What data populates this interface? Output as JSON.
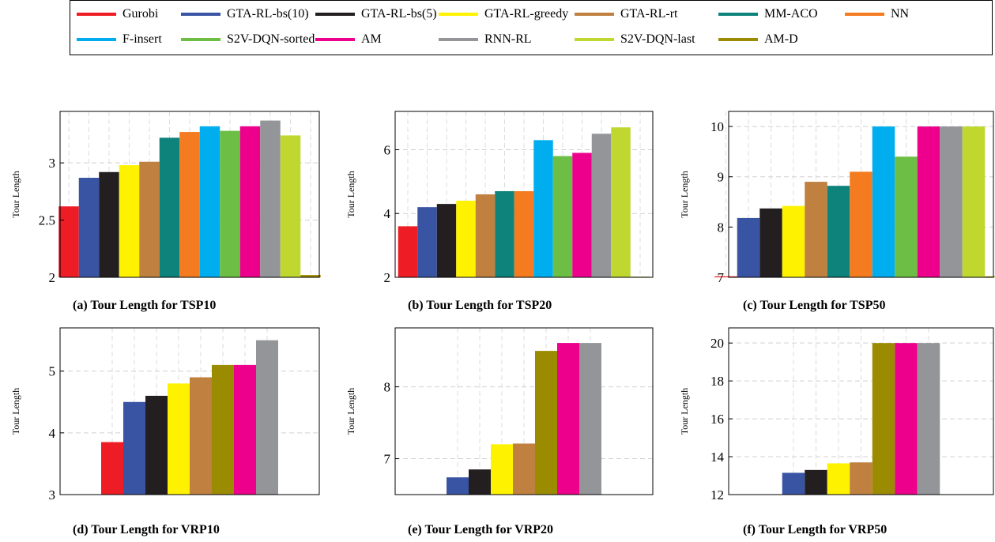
{
  "legend": [
    {
      "name": "Gurobi",
      "color": "#ee1c24"
    },
    {
      "name": "GTA-RL-bs(10)",
      "color": "#3a54a4"
    },
    {
      "name": "GTA-RL-bs(5)",
      "color": "#231f20"
    },
    {
      "name": "GTA-RL-greedy",
      "color": "#fff200"
    },
    {
      "name": "GTA-RL-rt",
      "color": "#c08040"
    },
    {
      "name": "MM-ACO",
      "color": "#0e837b"
    },
    {
      "name": "NN",
      "color": "#f47b20"
    },
    {
      "name": "F-insert",
      "color": "#00aeef"
    },
    {
      "name": "S2V-DQN-sorted",
      "color": "#6cbe45"
    },
    {
      "name": "AM",
      "color": "#ec008c"
    },
    {
      "name": "RNN-RL",
      "color": "#939598"
    },
    {
      "name": "S2V-DQN-last",
      "color": "#c0d730"
    },
    {
      "name": "AM-D",
      "color": "#9b8b00"
    }
  ],
  "chart_data": [
    {
      "type": "bar",
      "ylabel": "Tour Length",
      "caption": "(a) Tour Length for TSP10",
      "ylim": [
        2,
        3.45
      ],
      "yticks": [
        2,
        2.5,
        3
      ],
      "yticklabels": [
        "2",
        "2.5",
        "3"
      ],
      "series": [
        {
          "name": "Gurobi",
          "value": 2.62
        },
        {
          "name": "GTA-RL-bs(10)",
          "value": 2.87
        },
        {
          "name": "GTA-RL-bs(5)",
          "value": 2.92
        },
        {
          "name": "GTA-RL-greedy",
          "value": 2.98
        },
        {
          "name": "GTA-RL-rt",
          "value": 3.01
        },
        {
          "name": "MM-ACO",
          "value": 3.22
        },
        {
          "name": "NN",
          "value": 3.27
        },
        {
          "name": "F-insert",
          "value": 3.32
        },
        {
          "name": "S2V-DQN-sorted",
          "value": 3.28
        },
        {
          "name": "AM",
          "value": 3.32
        },
        {
          "name": "RNN-RL",
          "value": 3.37
        },
        {
          "name": "S2V-DQN-last",
          "value": 3.24
        },
        {
          "name": "AM-D",
          "value": 2.02
        }
      ]
    },
    {
      "type": "bar",
      "ylabel": "Tour Length",
      "caption": "(b) Tour Length for TSP20",
      "ylim": [
        2,
        7.2
      ],
      "yticks": [
        2,
        4,
        6
      ],
      "yticklabels": [
        "2",
        "4",
        "6"
      ],
      "series": [
        {
          "name": "Gurobi",
          "value": 3.6
        },
        {
          "name": "GTA-RL-bs(10)",
          "value": 4.2
        },
        {
          "name": "GTA-RL-bs(5)",
          "value": 4.3
        },
        {
          "name": "GTA-RL-greedy",
          "value": 4.4
        },
        {
          "name": "GTA-RL-rt",
          "value": 4.6
        },
        {
          "name": "MM-ACO",
          "value": 4.7
        },
        {
          "name": "NN",
          "value": 4.7
        },
        {
          "name": "F-insert",
          "value": 6.3
        },
        {
          "name": "S2V-DQN-sorted",
          "value": 5.8
        },
        {
          "name": "AM",
          "value": 5.9
        },
        {
          "name": "RNN-RL",
          "value": 6.5
        },
        {
          "name": "S2V-DQN-last",
          "value": 6.7
        },
        {
          "name": "AM-D",
          "value": 2.02
        }
      ]
    },
    {
      "type": "bar",
      "ylabel": "Tour Length",
      "caption": "(c) Tour Length for TSP50",
      "ylim": [
        7,
        10.3
      ],
      "yticks": [
        7,
        8,
        9,
        10
      ],
      "yticklabels": [
        "7",
        "8",
        "9",
        "10"
      ],
      "series": [
        {
          "name": "Gurobi",
          "value": 7.02
        },
        {
          "name": "GTA-RL-bs(10)",
          "value": 8.18
        },
        {
          "name": "GTA-RL-bs(5)",
          "value": 8.37
        },
        {
          "name": "GTA-RL-greedy",
          "value": 8.42
        },
        {
          "name": "GTA-RL-rt",
          "value": 8.9
        },
        {
          "name": "MM-ACO",
          "value": 8.82
        },
        {
          "name": "NN",
          "value": 9.1
        },
        {
          "name": "F-insert",
          "value": 10.0
        },
        {
          "name": "S2V-DQN-sorted",
          "value": 9.4
        },
        {
          "name": "AM",
          "value": 10.0
        },
        {
          "name": "RNN-RL",
          "value": 10.0
        },
        {
          "name": "S2V-DQN-last",
          "value": 10.0
        },
        {
          "name": "AM-D",
          "value": 7.02
        }
      ]
    },
    {
      "type": "bar",
      "ylabel": "Tour Length",
      "caption": "(d) Tour Length for VRP10",
      "ylim": [
        3,
        5.7
      ],
      "yticks": [
        3,
        4,
        5
      ],
      "yticklabels": [
        "3",
        "4",
        "5"
      ],
      "series": [
        {
          "name": "Gurobi",
          "value": 3.85
        },
        {
          "name": "GTA-RL-bs(10)",
          "value": 4.5
        },
        {
          "name": "GTA-RL-bs(5)",
          "value": 4.6
        },
        {
          "name": "GTA-RL-greedy",
          "value": 4.8
        },
        {
          "name": "GTA-RL-rt",
          "value": 4.9
        },
        {
          "name": "AM-D",
          "value": 5.1
        },
        {
          "name": "AM",
          "value": 5.1
        },
        {
          "name": "RNN-RL",
          "value": 5.5
        }
      ]
    },
    {
      "type": "bar",
      "ylabel": "Tour Length",
      "caption": "(e) Tour Length for VRP20",
      "ylim": [
        6.5,
        8.82
      ],
      "yticks": [
        7,
        8
      ],
      "yticklabels": [
        "7",
        "8"
      ],
      "series": [
        {
          "name": "GTA-RL-bs(10)",
          "value": 6.74
        },
        {
          "name": "GTA-RL-bs(5)",
          "value": 6.85
        },
        {
          "name": "GTA-RL-greedy",
          "value": 7.2
        },
        {
          "name": "GTA-RL-rt",
          "value": 7.21
        },
        {
          "name": "AM-D",
          "value": 8.5
        },
        {
          "name": "AM",
          "value": 8.61
        },
        {
          "name": "RNN-RL",
          "value": 8.61
        }
      ]
    },
    {
      "type": "bar",
      "ylabel": "Tour Length",
      "caption": "(f) Tour Length for VRP50",
      "ylim": [
        12,
        20.8
      ],
      "yticks": [
        12,
        14,
        16,
        18,
        20
      ],
      "yticklabels": [
        "12",
        "14",
        "16",
        "18",
        "20"
      ],
      "series": [
        {
          "name": "GTA-RL-bs(10)",
          "value": 13.15
        },
        {
          "name": "GTA-RL-bs(5)",
          "value": 13.3
        },
        {
          "name": "GTA-RL-greedy",
          "value": 13.65
        },
        {
          "name": "GTA-RL-rt",
          "value": 13.7
        },
        {
          "name": "AM-D",
          "value": 20.0
        },
        {
          "name": "AM",
          "value": 20.0
        },
        {
          "name": "RNN-RL",
          "value": 20.0
        }
      ]
    }
  ]
}
